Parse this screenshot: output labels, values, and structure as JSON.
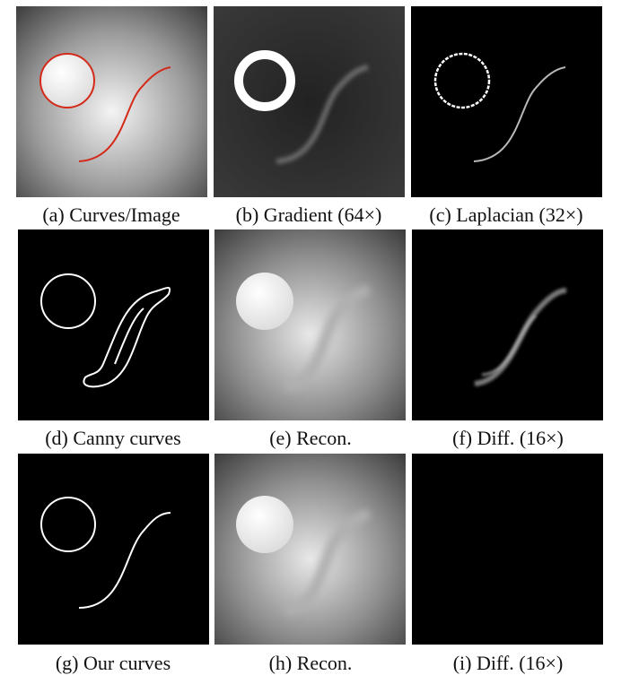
{
  "figure": {
    "captions": {
      "a": "(a) Curves/Image",
      "b": "(b) Gradient (64×)",
      "c": "(c) Laplacian (32×)",
      "d": "(d) Canny curves",
      "e": "(e) Recon.",
      "f": "(f) Diff. (16×)",
      "g": "(g) Our curves",
      "h": "(h) Recon.",
      "i": "(i) Diff. (16×)"
    },
    "colors": {
      "curve_overlay": "#d42a1a",
      "background": "#ffffff",
      "panel_black": "#000000"
    }
  }
}
